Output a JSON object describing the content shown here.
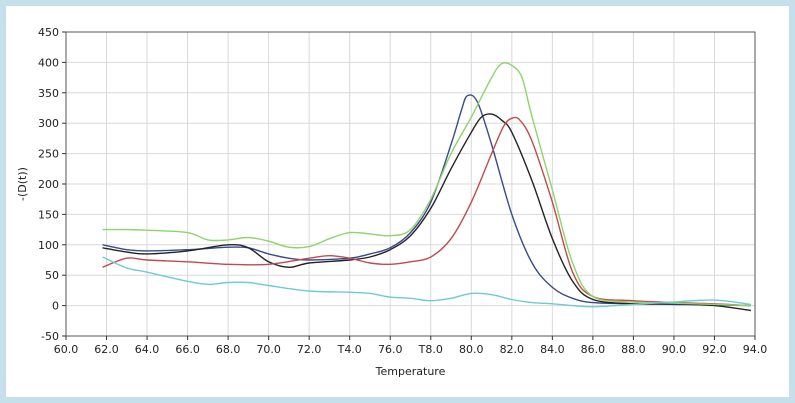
{
  "chart_data": {
    "type": "line",
    "title": "",
    "xlabel": "Temperature",
    "ylabel": "-(D(t))",
    "xlim": [
      60,
      94
    ],
    "ylim": [
      -50,
      450
    ],
    "grid": true,
    "legend": "none",
    "x_ticks": [
      60,
      62,
      64,
      66,
      68,
      70,
      72,
      74,
      76,
      78,
      80,
      82,
      84,
      86,
      88,
      90,
      92,
      94
    ],
    "x_tick_labels": [
      "60.0",
      "62.0",
      "64.0",
      "66.0",
      "68.0",
      "70.0",
      "72.0",
      "T4.0",
      "76.0",
      "T8.0",
      "80.0",
      "82.0",
      "84.0",
      "86.0",
      "88.0",
      "90.0",
      "92.0",
      "94.0"
    ],
    "y_ticks": [
      -50,
      0,
      50,
      100,
      150,
      200,
      250,
      300,
      350,
      400,
      450
    ],
    "series": [
      {
        "color": "#3a4a8c",
        "points": [
          [
            61.8,
            100
          ],
          [
            63,
            92
          ],
          [
            64,
            90
          ],
          [
            66,
            92
          ],
          [
            68,
            96
          ],
          [
            69,
            95
          ],
          [
            70,
            85
          ],
          [
            71,
            78
          ],
          [
            72,
            75
          ],
          [
            74,
            78
          ],
          [
            75,
            85
          ],
          [
            76,
            95
          ],
          [
            77,
            120
          ],
          [
            78,
            170
          ],
          [
            79,
            265
          ],
          [
            79.5,
            320
          ],
          [
            79.8,
            345
          ],
          [
            80.3,
            335
          ],
          [
            81,
            265
          ],
          [
            82,
            150
          ],
          [
            83,
            70
          ],
          [
            84,
            30
          ],
          [
            85,
            12
          ],
          [
            86,
            5
          ],
          [
            88,
            3
          ],
          [
            90,
            2
          ],
          [
            92,
            1
          ],
          [
            93.8,
            0
          ]
        ]
      },
      {
        "color": "#232323",
        "points": [
          [
            61.8,
            95
          ],
          [
            63,
            88
          ],
          [
            64,
            85
          ],
          [
            66,
            90
          ],
          [
            68,
            100
          ],
          [
            69,
            95
          ],
          [
            70,
            72
          ],
          [
            71,
            63
          ],
          [
            72,
            70
          ],
          [
            74,
            75
          ],
          [
            75,
            80
          ],
          [
            76,
            92
          ],
          [
            77,
            115
          ],
          [
            78,
            160
          ],
          [
            79,
            225
          ],
          [
            80,
            285
          ],
          [
            80.5,
            310
          ],
          [
            81,
            315
          ],
          [
            81.5,
            305
          ],
          [
            82,
            285
          ],
          [
            83,
            205
          ],
          [
            84,
            110
          ],
          [
            85,
            40
          ],
          [
            86,
            10
          ],
          [
            88,
            3
          ],
          [
            90,
            3
          ],
          [
            92,
            0
          ],
          [
            93.8,
            -8
          ]
        ]
      },
      {
        "color": "#c24a4a",
        "points": [
          [
            61.8,
            63
          ],
          [
            63,
            78
          ],
          [
            64,
            75
          ],
          [
            66,
            72
          ],
          [
            68,
            68
          ],
          [
            70,
            68
          ],
          [
            72,
            78
          ],
          [
            73,
            82
          ],
          [
            74,
            78
          ],
          [
            75,
            70
          ],
          [
            76,
            68
          ],
          [
            77,
            72
          ],
          [
            78,
            80
          ],
          [
            79,
            110
          ],
          [
            80,
            170
          ],
          [
            81,
            250
          ],
          [
            81.6,
            295
          ],
          [
            82,
            308
          ],
          [
            82.4,
            305
          ],
          [
            83,
            270
          ],
          [
            84,
            170
          ],
          [
            85,
            55
          ],
          [
            86,
            15
          ],
          [
            88,
            8
          ],
          [
            90,
            5
          ],
          [
            92,
            3
          ],
          [
            93.8,
            0
          ]
        ]
      },
      {
        "color": "#8ed46a",
        "points": [
          [
            61.8,
            125
          ],
          [
            63,
            125
          ],
          [
            64,
            124
          ],
          [
            66,
            120
          ],
          [
            67,
            108
          ],
          [
            68,
            108
          ],
          [
            69,
            112
          ],
          [
            70,
            106
          ],
          [
            71,
            96
          ],
          [
            72,
            97
          ],
          [
            73,
            110
          ],
          [
            74,
            120
          ],
          [
            75,
            118
          ],
          [
            76,
            115
          ],
          [
            77,
            125
          ],
          [
            78,
            175
          ],
          [
            79,
            250
          ],
          [
            80,
            310
          ],
          [
            81,
            375
          ],
          [
            81.5,
            398
          ],
          [
            82,
            395
          ],
          [
            82.5,
            375
          ],
          [
            83,
            310
          ],
          [
            84,
            190
          ],
          [
            85,
            70
          ],
          [
            86,
            15
          ],
          [
            88,
            6
          ],
          [
            90,
            4
          ],
          [
            92,
            2
          ],
          [
            93.8,
            0
          ]
        ]
      },
      {
        "color": "#6ecad8",
        "points": [
          [
            61.8,
            80
          ],
          [
            63,
            62
          ],
          [
            64,
            55
          ],
          [
            66,
            40
          ],
          [
            67,
            35
          ],
          [
            68,
            38
          ],
          [
            69,
            38
          ],
          [
            70,
            33
          ],
          [
            72,
            24
          ],
          [
            74,
            22
          ],
          [
            75,
            20
          ],
          [
            76,
            14
          ],
          [
            77,
            12
          ],
          [
            78,
            8
          ],
          [
            79,
            12
          ],
          [
            80,
            20
          ],
          [
            81,
            18
          ],
          [
            82,
            10
          ],
          [
            83,
            5
          ],
          [
            84,
            3
          ],
          [
            85,
            0
          ],
          [
            86,
            -2
          ],
          [
            88,
            2
          ],
          [
            90,
            6
          ],
          [
            92,
            9
          ],
          [
            93.8,
            2
          ]
        ]
      }
    ]
  }
}
